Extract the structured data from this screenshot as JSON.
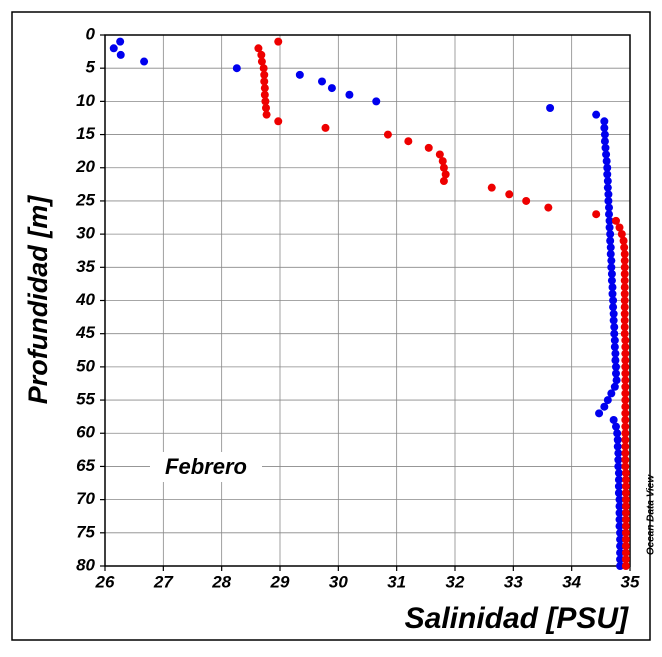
{
  "chart_data": {
    "type": "scatter",
    "xlabel": "Salinidad [PSU]",
    "ylabel": "Profundidad [m]",
    "annotation": "Febrero",
    "credit": "Ocean Data View",
    "xlim": [
      26,
      35
    ],
    "ylim": [
      0,
      80
    ],
    "y_inverted": true,
    "grid": true,
    "xticks": [
      26,
      27,
      28,
      29,
      30,
      31,
      32,
      33,
      34,
      35
    ],
    "yticks": [
      0,
      5,
      10,
      15,
      20,
      25,
      30,
      35,
      40,
      45,
      50,
      55,
      60,
      65,
      70,
      75,
      80
    ],
    "series": [
      {
        "color": "#0000ee",
        "x": [
          26.26,
          26.15,
          26.27,
          26.67,
          28.26,
          29.34,
          29.72,
          29.89,
          30.19,
          30.65,
          33.63,
          34.42,
          34.56,
          34.56,
          34.57,
          34.57,
          34.58,
          34.59,
          34.6,
          34.61,
          34.61,
          34.62,
          34.62,
          34.63,
          34.63,
          34.64,
          34.64,
          34.65,
          34.65,
          34.66,
          34.66,
          34.67,
          34.67,
          34.68,
          34.68,
          34.69,
          34.69,
          34.7,
          34.7,
          34.71,
          34.71,
          34.72,
          34.72,
          34.73,
          34.73,
          34.74,
          34.74,
          34.75,
          34.75,
          34.76,
          34.76,
          34.77,
          34.74,
          34.68,
          34.62,
          34.56,
          34.47,
          34.72,
          34.76,
          34.78,
          34.79,
          34.79,
          34.8,
          34.8,
          34.8,
          34.81,
          34.81,
          34.81,
          34.81,
          34.82,
          34.82,
          34.82,
          34.82,
          34.82,
          34.83,
          34.83,
          34.83,
          34.83,
          34.83,
          34.83
        ],
        "values": [
          1,
          2,
          3,
          4,
          5,
          6,
          7,
          8,
          9,
          10,
          11,
          12,
          13,
          14,
          15,
          16,
          17,
          18,
          19,
          20,
          21,
          22,
          23,
          24,
          25,
          26,
          27,
          28,
          29,
          30,
          31,
          32,
          33,
          34,
          35,
          36,
          37,
          38,
          39,
          40,
          41,
          42,
          43,
          44,
          45,
          46,
          47,
          48,
          49,
          50,
          51,
          52,
          53,
          54,
          55,
          56,
          57,
          58,
          59,
          60,
          61,
          62,
          63,
          64,
          65,
          66,
          67,
          68,
          69,
          70,
          71,
          72,
          73,
          74,
          75,
          76,
          77,
          78,
          79,
          80
        ]
      },
      {
        "color": "#ee0000",
        "x": [
          28.97,
          28.63,
          28.68,
          28.69,
          28.72,
          28.73,
          28.73,
          28.74,
          28.74,
          28.75,
          28.76,
          28.77,
          28.97,
          29.78,
          30.85,
          31.2,
          31.55,
          31.74,
          31.79,
          31.81,
          31.84,
          31.81,
          32.63,
          32.93,
          33.22,
          33.6,
          34.42,
          34.76,
          34.82,
          34.86,
          34.89,
          34.9,
          34.91,
          34.91,
          34.91,
          34.91,
          34.91,
          34.91,
          34.91,
          34.91,
          34.91,
          34.91,
          34.91,
          34.91,
          34.91,
          34.92,
          34.92,
          34.92,
          34.92,
          34.92,
          34.92,
          34.92,
          34.92,
          34.92,
          34.92,
          34.92,
          34.92,
          34.92,
          34.92,
          34.92,
          34.92,
          34.92,
          34.92,
          34.92,
          34.92,
          34.93,
          34.93,
          34.93,
          34.93,
          34.93,
          34.93,
          34.93,
          34.93,
          34.93,
          34.93,
          34.93,
          34.93,
          34.93,
          34.93,
          34.93
        ],
        "values": [
          1,
          2,
          3,
          4,
          5,
          6,
          7,
          8,
          9,
          10,
          11,
          12,
          13,
          14,
          15,
          16,
          17,
          18,
          19,
          20,
          21,
          22,
          23,
          24,
          25,
          26,
          27,
          28,
          29,
          30,
          31,
          32,
          33,
          34,
          35,
          36,
          37,
          38,
          39,
          40,
          41,
          42,
          43,
          44,
          45,
          46,
          47,
          48,
          49,
          50,
          51,
          52,
          53,
          54,
          55,
          56,
          57,
          58,
          59,
          60,
          61,
          62,
          63,
          64,
          65,
          66,
          67,
          68,
          69,
          70,
          71,
          72,
          73,
          74,
          75,
          76,
          77,
          78,
          79,
          80
        ]
      }
    ]
  }
}
